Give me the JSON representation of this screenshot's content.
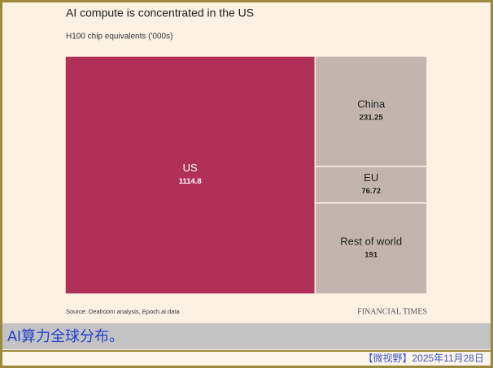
{
  "chart_data": {
    "type": "treemap",
    "title": "AI compute is concentrated in the US",
    "subtitle": "H100 chip equivalents ('000s)",
    "categories": [
      "US",
      "China",
      "EU",
      "Rest of world"
    ],
    "values": [
      1114.8,
      231.25,
      76.72,
      191
    ],
    "colors": [
      "#b0305a",
      "#c3b5ad",
      "#c3b5ad",
      "#c3b5ad"
    ],
    "source": "Source: Dealroom analysis, Epoch.ai data",
    "brand": "FINANCIAL TIMES"
  },
  "caption": "AI算力全球分布。",
  "footer": "【微视野】2025年11月28日"
}
